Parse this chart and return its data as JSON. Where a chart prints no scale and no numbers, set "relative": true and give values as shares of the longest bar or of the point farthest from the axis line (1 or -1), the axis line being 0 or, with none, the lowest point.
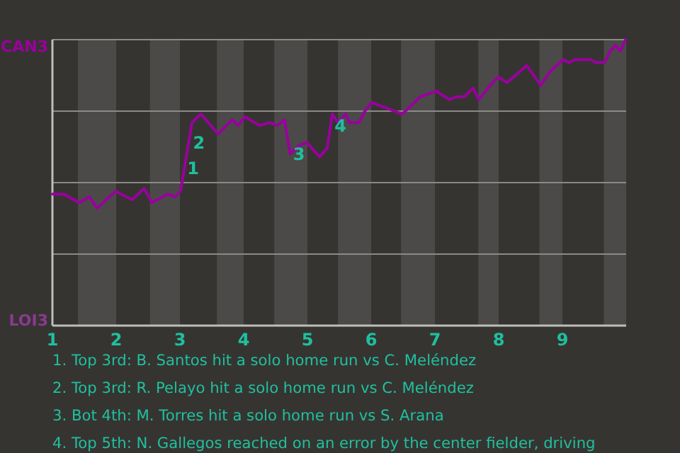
{
  "chart_data": {
    "type": "line",
    "xlim": [
      1,
      10
    ],
    "relative": true,
    "xticks": [
      1,
      2,
      3,
      4,
      5,
      6,
      7,
      8,
      9
    ],
    "ref_lines": [
      {
        "axis": "y",
        "value": 0.25,
        "color": "#8a8a88"
      },
      {
        "axis": "y",
        "value": 0.5,
        "color": "#8a8a88"
      },
      {
        "axis": "y",
        "value": 0.75,
        "color": "#8a8a88"
      },
      {
        "axis": "y",
        "value": 1,
        "color": "#8a8a88"
      }
    ],
    "marker": "none",
    "line_style": "solid",
    "series": [
      {
        "color": "#9a009e",
        "x": [
          1,
          1.18,
          1.42,
          1.58,
          1.7,
          1.99,
          2.25,
          2.44,
          2.56,
          2.81,
          2.92,
          3.01,
          3.07,
          3.19,
          3.33,
          3.6,
          3.82,
          3.91,
          4.02,
          4.25,
          4.41,
          4.53,
          4.64,
          4.73,
          4.87,
          4.99,
          5.19,
          5.31,
          5.39,
          5.48,
          5.6,
          5.66,
          5.81,
          5.9,
          6.01,
          6.49,
          6.77,
          7.02,
          7.23,
          7.33,
          7.46,
          7.6,
          7.69,
          7.83,
          7.99,
          8.13,
          8.29,
          8.44,
          8.66,
          8.81,
          9.01,
          9.11,
          9.19,
          9.44,
          9.52,
          9.66,
          9.75,
          9.83,
          9.91,
          9.99
        ],
        "values": [
          0.46,
          0.46,
          0.43,
          0.45,
          0.41,
          0.47,
          0.44,
          0.48,
          0.43,
          0.46,
          0.45,
          0.47,
          0.55,
          0.71,
          0.74,
          0.67,
          0.72,
          0.7,
          0.73,
          0.7,
          0.71,
          0.7,
          0.72,
          0.6,
          0.63,
          0.64,
          0.59,
          0.62,
          0.74,
          0.71,
          0.74,
          0.71,
          0.71,
          0.75,
          0.78,
          0.74,
          0.8,
          0.82,
          0.79,
          0.8,
          0.8,
          0.83,
          0.79,
          0.83,
          0.87,
          0.85,
          0.88,
          0.91,
          0.84,
          0.89,
          0.93,
          0.92,
          0.93,
          0.93,
          0.92,
          0.92,
          0.96,
          0.98,
          0.96,
          1.0
        ]
      }
    ],
    "bands": [
      {
        "axis": "x",
        "from": 1.4,
        "to": 2,
        "color": "#4b4a48"
      },
      {
        "axis": "x",
        "from": 2.53,
        "to": 3,
        "color": "#4b4a48"
      },
      {
        "axis": "x",
        "from": 3.58,
        "to": 4,
        "color": "#4b4a48"
      },
      {
        "axis": "x",
        "from": 4.48,
        "to": 5,
        "color": "#4b4a48"
      },
      {
        "axis": "x",
        "from": 5.48,
        "to": 6,
        "color": "#4b4a48"
      },
      {
        "axis": "x",
        "from": 6.47,
        "to": 7,
        "color": "#4b4a48"
      },
      {
        "axis": "x",
        "from": 7.68,
        "to": 8,
        "color": "#4b4a48"
      },
      {
        "axis": "x",
        "from": 8.64,
        "to": 9,
        "color": "#4b4a48"
      },
      {
        "axis": "x",
        "from": 9.65,
        "to": 10,
        "color": "#4b4a48"
      }
    ],
    "annotations": [
      "CAN3",
      "LOI3",
      {
        "text": "1",
        "x": 3.07,
        "y": 0.55
      },
      {
        "text": "2",
        "x": 3.16,
        "y": 0.64
      },
      {
        "text": "3",
        "x": 4.73,
        "y": 0.6
      },
      {
        "text": "4",
        "x": 5.38,
        "y": 0.7
      },
      "1. Top 3rd: B. Santos hit a solo home run vs C. Meléndez",
      "2. Top 3rd: R. Pelayo hit a solo home run vs C. Meléndez",
      "3. Bot 4th: M. Torres hit a solo home run vs S. Arana",
      "4. Top 5th: N. Gallegos reached on an error by the center fielder, driving"
    ]
  }
}
